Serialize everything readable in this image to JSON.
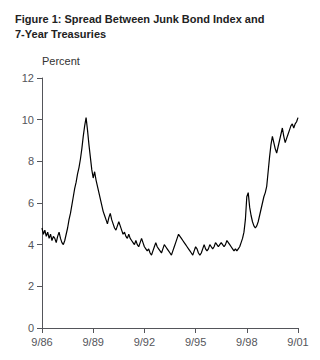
{
  "chart_data": {
    "type": "line",
    "title": "Figure 1: Spread Between Junk Bond Index and\n7-Year Treasuries",
    "y_label": "Percent",
    "categories": [
      "9/86",
      null,
      null,
      null,
      null,
      null,
      null,
      null,
      null,
      null,
      null,
      null,
      null,
      null,
      null,
      null,
      null,
      null,
      null,
      null,
      null,
      null,
      null,
      null,
      null,
      null,
      null,
      null,
      null,
      null,
      null,
      null,
      null,
      null,
      null,
      null,
      "9/89",
      null,
      null,
      null,
      null,
      null,
      null,
      null,
      null,
      null,
      null,
      null,
      null,
      null,
      null,
      null,
      null,
      null,
      null,
      null,
      null,
      null,
      null,
      null,
      null,
      null,
      null,
      null,
      null,
      null,
      null,
      null,
      null,
      null,
      null,
      null,
      "9/92",
      null,
      null,
      null,
      null,
      null,
      null,
      null,
      null,
      null,
      null,
      null,
      null,
      null,
      null,
      null,
      null,
      null,
      null,
      null,
      null,
      null,
      null,
      null,
      null,
      null,
      null,
      null,
      null,
      null,
      null,
      null,
      null,
      null,
      null,
      null,
      "9/95",
      null,
      null,
      null,
      null,
      null,
      null,
      null,
      null,
      null,
      null,
      null,
      null,
      null,
      null,
      null,
      null,
      null,
      null,
      null,
      null,
      null,
      null,
      null,
      null,
      null,
      null,
      null,
      null,
      null,
      null,
      null,
      null,
      null,
      null,
      null,
      "9/98",
      null,
      null,
      null,
      null,
      null,
      null,
      null,
      null,
      null,
      null,
      null,
      null,
      null,
      null,
      null,
      null,
      null,
      null,
      null,
      null,
      null,
      null,
      null,
      null,
      null,
      null,
      null,
      null,
      null,
      null,
      null,
      null,
      null,
      null,
      null,
      "9/01"
    ],
    "values": [
      4.8,
      4.5,
      4.7,
      4.4,
      4.6,
      4.3,
      4.5,
      4.2,
      4.4,
      4.3,
      4.1,
      4.4,
      4.6,
      4.3,
      4.1,
      4.0,
      4.2,
      4.5,
      4.8,
      5.2,
      5.5,
      5.9,
      6.3,
      6.7,
      7.0,
      7.4,
      7.7,
      8.1,
      8.6,
      9.2,
      9.7,
      10.1,
      9.5,
      8.8,
      8.2,
      7.6,
      7.2,
      7.5,
      7.1,
      6.8,
      6.5,
      6.2,
      5.9,
      5.6,
      5.4,
      5.2,
      5.0,
      5.3,
      5.5,
      5.2,
      5.0,
      4.8,
      4.7,
      4.9,
      5.1,
      4.9,
      4.7,
      4.5,
      4.6,
      4.4,
      4.3,
      4.5,
      4.3,
      4.2,
      4.1,
      4.0,
      4.2,
      4.0,
      3.9,
      4.1,
      4.3,
      4.1,
      3.9,
      3.8,
      3.7,
      3.8,
      3.6,
      3.5,
      3.7,
      3.9,
      4.1,
      3.9,
      3.8,
      3.7,
      3.6,
      3.8,
      4.0,
      3.9,
      3.8,
      3.7,
      3.6,
      3.5,
      3.7,
      3.9,
      4.1,
      4.3,
      4.5,
      4.4,
      4.3,
      4.2,
      4.1,
      4.0,
      3.9,
      3.8,
      3.7,
      3.6,
      3.5,
      3.7,
      3.9,
      3.8,
      3.6,
      3.5,
      3.6,
      3.8,
      4.0,
      3.8,
      3.7,
      3.8,
      4.0,
      3.9,
      3.8,
      3.9,
      4.1,
      4.0,
      3.9,
      4.0,
      4.1,
      4.0,
      3.9,
      4.0,
      4.2,
      4.1,
      4.0,
      3.9,
      3.8,
      3.7,
      3.8,
      3.7,
      3.8,
      3.9,
      4.1,
      4.3,
      4.6,
      5.2,
      6.3,
      6.5,
      5.8,
      5.4,
      5.1,
      4.9,
      4.8,
      4.9,
      5.1,
      5.4,
      5.7,
      6.0,
      6.3,
      6.5,
      6.8,
      7.5,
      8.2,
      8.8,
      9.2,
      8.9,
      8.6,
      8.4,
      8.7,
      9.0,
      9.3,
      9.6,
      9.2,
      8.9,
      9.1,
      9.3,
      9.5,
      9.7,
      9.8,
      9.6,
      9.8,
      9.9,
      10.1
    ],
    "color": "#000000",
    "ylim": [
      0,
      12
    ],
    "yticks": [
      0,
      2,
      4,
      6,
      8,
      10,
      12
    ],
    "grid": false
  }
}
